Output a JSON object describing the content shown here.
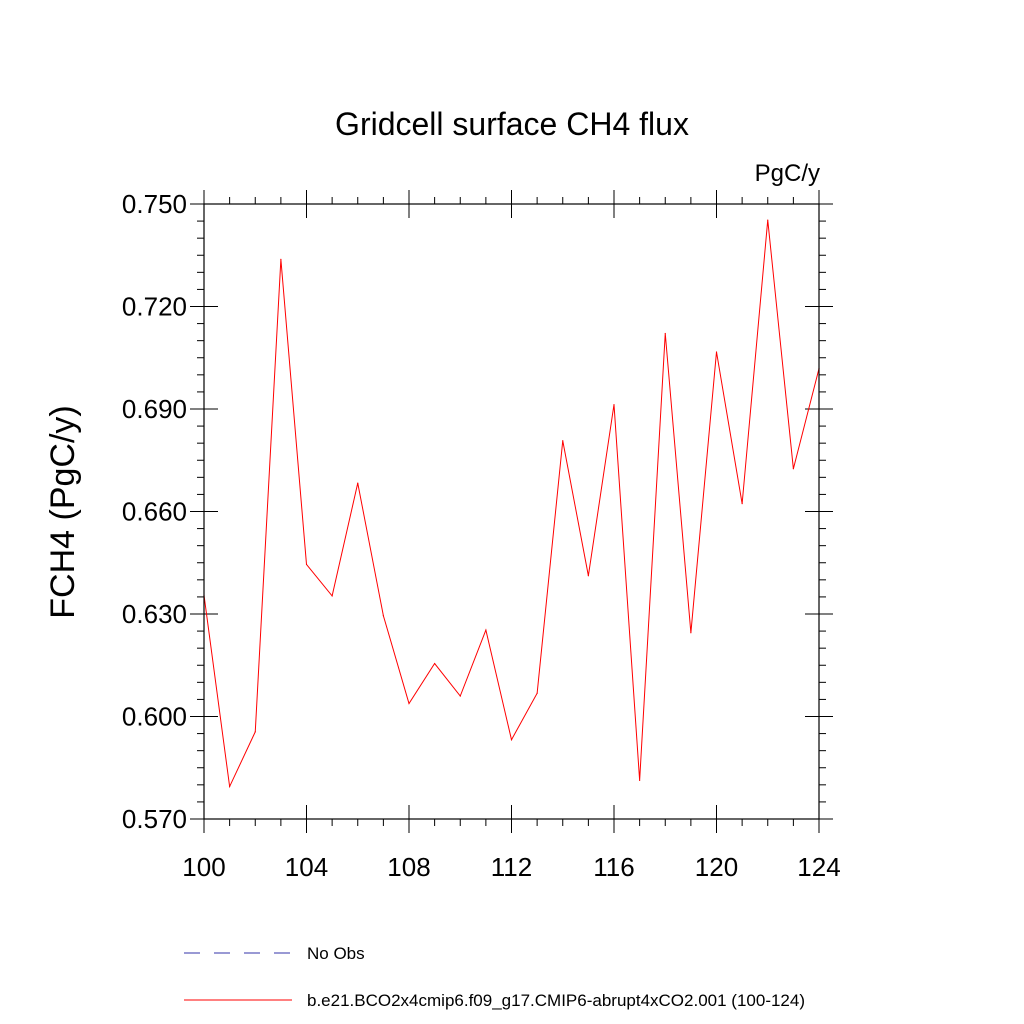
{
  "chart_data": {
    "type": "line",
    "title": "Gridcell surface CH4 flux",
    "units_label": "PgC/y",
    "ylabel": "FCH4  (PgC/y)",
    "xlabel": "",
    "xlim": [
      100,
      124
    ],
    "ylim": [
      0.57,
      0.75
    ],
    "x_major_ticks": [
      100,
      104,
      108,
      112,
      116,
      120,
      124
    ],
    "x_tick_labels": [
      "100",
      "104",
      "108",
      "112",
      "116",
      "120",
      "124"
    ],
    "x_minor_step": 1,
    "y_major_ticks": [
      0.57,
      0.6,
      0.63,
      0.66,
      0.69,
      0.72,
      0.75
    ],
    "y_tick_labels": [
      "0.570",
      "0.600",
      "0.630",
      "0.660",
      "0.690",
      "0.720",
      "0.750"
    ],
    "y_minor_step": 0.005,
    "grid": false,
    "series": [
      {
        "name": "b.e21.BCO2x4cmip6.f09_g17.CMIP6-abrupt4xCO2.001 (100-124)",
        "color": "#ff0000",
        "style": "solid",
        "x": [
          100,
          101,
          102,
          103,
          104,
          105,
          106,
          107,
          108,
          109,
          110,
          111,
          112,
          113,
          114,
          115,
          116,
          117,
          118,
          119,
          120,
          121,
          122,
          123,
          124
        ],
        "values": [
          0.6355,
          0.5795,
          0.5955,
          0.7338,
          0.6445,
          0.6353,
          0.6683,
          0.6295,
          0.6038,
          0.6155,
          0.606,
          0.6253,
          0.5932,
          0.6068,
          0.6807,
          0.6412,
          0.6913,
          0.5813,
          0.7121,
          0.6245,
          0.7067,
          0.6623,
          0.7453,
          0.6725,
          0.7018
        ]
      }
    ],
    "legend": [
      {
        "label": "No Obs",
        "color": "#3333aa",
        "style": "dashed"
      },
      {
        "label": "b.e21.BCO2x4cmip6.f09_g17.CMIP6-abrupt4xCO2.001 (100-124)",
        "color": "#ff0000",
        "style": "solid"
      }
    ],
    "legend_position": "bottom"
  }
}
